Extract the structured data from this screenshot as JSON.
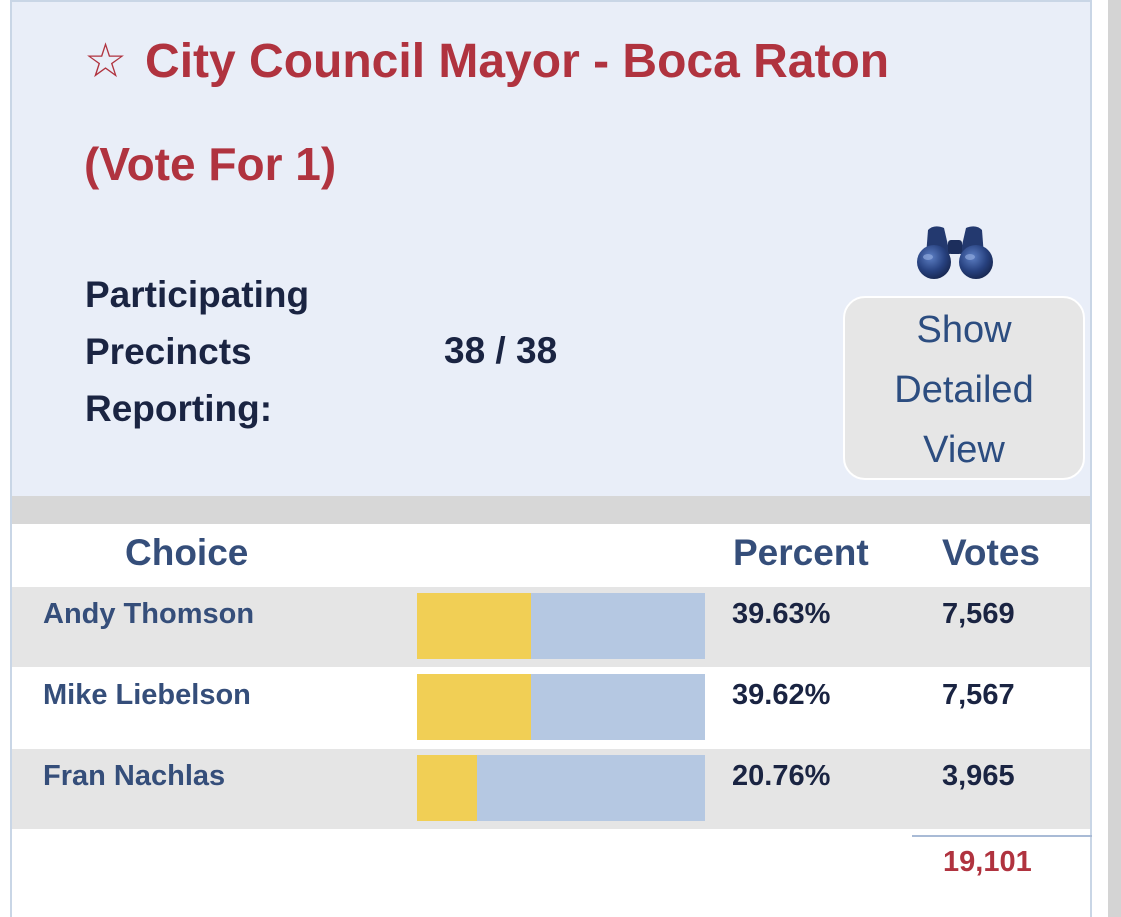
{
  "contest": {
    "star_icon": "☆",
    "title": "City Council Mayor - Boca Raton",
    "subtitle": "(Vote For 1)"
  },
  "precincts": {
    "label_line1": "Participating",
    "label_line2": "Precincts",
    "label_line3": "Reporting:",
    "value": "38 / 38"
  },
  "detail_button": {
    "icon": "binoculars-icon",
    "line1": "Show",
    "line2": "Detailed",
    "line3": "View"
  },
  "table": {
    "headers": {
      "choice": "Choice",
      "percent": "Percent",
      "votes": "Votes"
    },
    "rows": [
      {
        "name": "Andy Thomson",
        "percent": "39.63%",
        "share": 0.3963,
        "votes": "7,569"
      },
      {
        "name": "Mike Liebelson",
        "percent": "39.62%",
        "share": 0.3962,
        "votes": "7,567"
      },
      {
        "name": "Fran Nachlas",
        "percent": "20.76%",
        "share": 0.2076,
        "votes": "3,965"
      }
    ],
    "total_votes": "19,101"
  },
  "colors": {
    "title_red": "#b0333f",
    "header_bg": "#e9eef8",
    "bar_yellow": "#f1cf55",
    "bar_blue": "#b5c8e2",
    "text_navy": "#1a2442",
    "label_blue": "#354e7a"
  }
}
